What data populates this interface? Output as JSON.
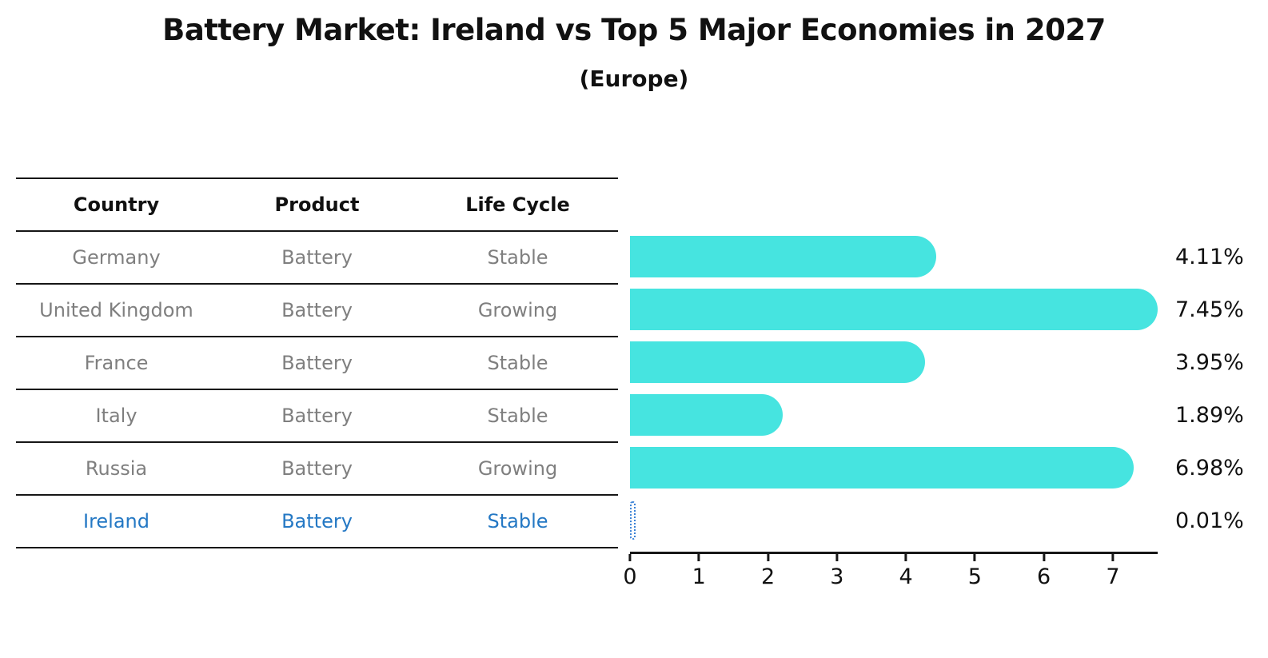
{
  "title": "Battery Market: Ireland vs Top 5 Major Economies in 2027",
  "subtitle": "(Europe)",
  "table": {
    "headers": [
      "Country",
      "Product",
      "Life Cycle"
    ],
    "rows": [
      {
        "country": "Germany",
        "product": "Battery",
        "life_cycle": "Stable",
        "highlight": false
      },
      {
        "country": "United Kingdom",
        "product": "Battery",
        "life_cycle": "Growing",
        "highlight": false
      },
      {
        "country": "France",
        "product": "Battery",
        "life_cycle": "Stable",
        "highlight": false
      },
      {
        "country": "Italy",
        "product": "Battery",
        "life_cycle": "Stable",
        "highlight": false
      },
      {
        "country": "Russia",
        "product": "Battery",
        "life_cycle": "Growing",
        "highlight": false
      },
      {
        "country": "Ireland",
        "product": "Battery",
        "life_cycle": "Stable",
        "highlight": true
      }
    ]
  },
  "chart_data": {
    "type": "bar",
    "orientation": "horizontal",
    "title": "Battery Market: Ireland vs Top 5 Major Economies in 2027 (Europe)",
    "categories": [
      "Germany",
      "United Kingdom",
      "France",
      "Italy",
      "Russia",
      "Ireland"
    ],
    "values": [
      4.11,
      7.45,
      3.95,
      1.89,
      6.98,
      0.01
    ],
    "value_labels": [
      "4.11%",
      "7.45%",
      "3.95%",
      "1.89%",
      "6.98%",
      "0.01%"
    ],
    "unit": "%",
    "xlabel": "",
    "ylabel": "",
    "xlim": [
      0,
      7.65
    ],
    "xticks": [
      0,
      1,
      2,
      3,
      4,
      5,
      6,
      7
    ],
    "grid": false,
    "legend": false,
    "bar_color": "#46e4e0",
    "highlight_color": "#2478c4",
    "highlight_index": 5
  }
}
